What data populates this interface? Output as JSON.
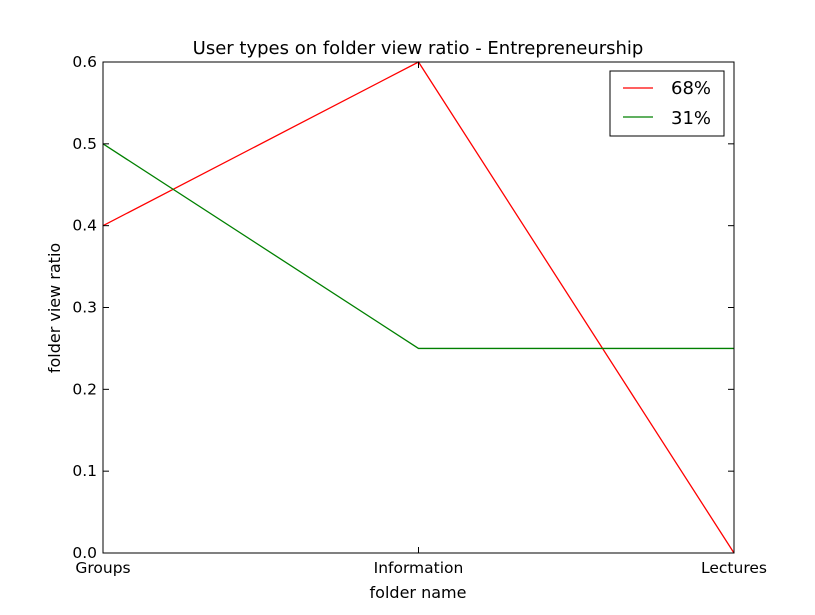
{
  "chart_data": {
    "type": "line",
    "title": "User types on folder view ratio - Entrepreneurship",
    "xlabel": "folder name",
    "ylabel": "folder view ratio",
    "categories": [
      "Groups",
      "Information",
      "Lectures"
    ],
    "ylim": [
      0,
      0.6
    ],
    "yticks": [
      "0.0",
      "0.1",
      "0.2",
      "0.3",
      "0.4",
      "0.5",
      "0.6"
    ],
    "grid": false,
    "legend_position": "top-right",
    "series": [
      {
        "name": "68%",
        "color": "#ff0000",
        "values": [
          0.4,
          0.6,
          0.0
        ]
      },
      {
        "name": "31%",
        "color": "#008000",
        "values": [
          0.5,
          0.25,
          0.25
        ]
      }
    ]
  }
}
